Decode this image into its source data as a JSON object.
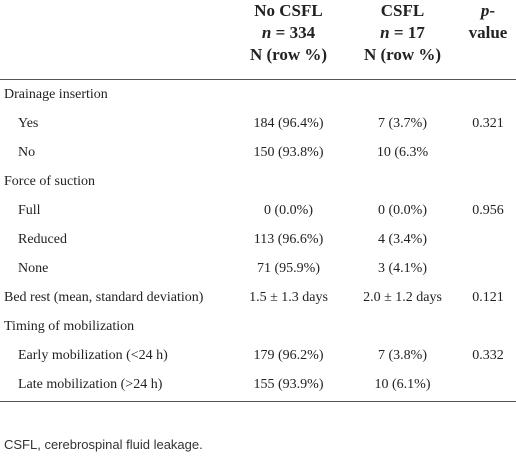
{
  "header": {
    "columns": [
      {
        "lines": [
          "No CSFL",
          "n = 334",
          "N (row %)"
        ]
      },
      {
        "lines": [
          "CSFL",
          "n = 17",
          "N (row %)"
        ]
      },
      {
        "lines": [
          "p-",
          "value"
        ]
      }
    ]
  },
  "sections": [
    {
      "label": "Drainage insertion",
      "rows": [
        {
          "label": "Yes",
          "cells": [
            "184 (96.4%)",
            "7 (3.7%)"
          ],
          "p_value": "0.321"
        },
        {
          "label": "No",
          "cells": [
            "150 (93.8%)",
            "10 (6.3%"
          ]
        }
      ]
    },
    {
      "label": "Force of suction",
      "rows": [
        {
          "label": "Full",
          "cells": [
            "0 (0.0%)",
            "0 (0.0%)"
          ],
          "p_value": "0.956"
        },
        {
          "label": "Reduced",
          "cells": [
            "113 (96.6%)",
            "4 (3.4%)"
          ]
        },
        {
          "label": "None",
          "cells": [
            "71 (95.9%)",
            "3 (4.1%)"
          ]
        }
      ]
    },
    {
      "label": "Bed rest (mean, standard deviation)",
      "cells": [
        "1.5 ± 1.3 days",
        "2.0 ± 1.2 days"
      ],
      "p_value": "0.121"
    },
    {
      "label": "Timing of mobilization",
      "rows": [
        {
          "label": "Early mobilization (<24 h)",
          "cells": [
            "179 (96.2%)",
            "7 (3.8%)"
          ],
          "p_value": "0.332"
        },
        {
          "label": "Late mobilization (>24 h)",
          "cells": [
            "155 (93.9%)",
            "10 (6.1%)"
          ]
        }
      ]
    }
  ],
  "footnote": "CSFL, cerebrospinal fluid leakage."
}
